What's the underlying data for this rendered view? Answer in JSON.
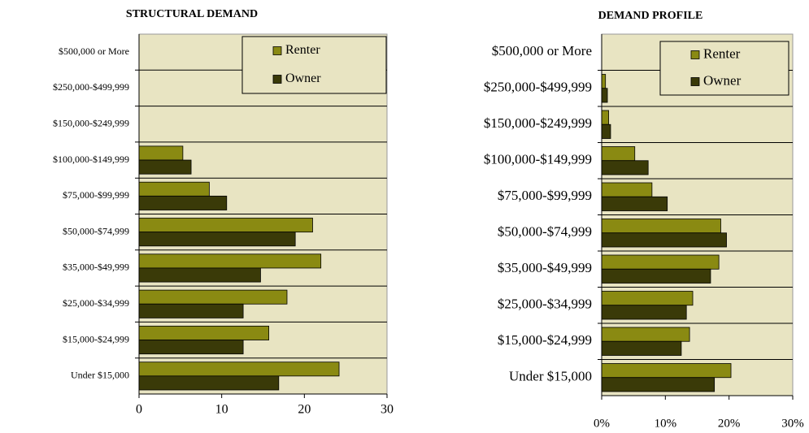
{
  "chart_data": [
    {
      "type": "bar",
      "orientation": "horizontal",
      "title": "STRUCTURAL DEMAND",
      "categories": [
        "$500,000 or More",
        "$250,000-$499,999",
        "$150,000-$249,999",
        "$100,000-$149,999",
        "$75,000-$99,999",
        "$50,000-$74,999",
        "$35,000-$49,999",
        "$25,000-$34,999",
        "$15,000-$24,999",
        "Under $15,000"
      ],
      "series": [
        {
          "name": "Renter",
          "color": "#8a8a12",
          "values": [
            0,
            0,
            0,
            5.3,
            8.5,
            21.0,
            22.0,
            17.9,
            15.7,
            24.2
          ]
        },
        {
          "name": "Owner",
          "color": "#3a3a08",
          "values": [
            0,
            0,
            0,
            6.3,
            10.6,
            18.9,
            14.7,
            12.6,
            12.6,
            16.9
          ]
        }
      ],
      "xlim": [
        0,
        30
      ],
      "xticks": [
        0,
        10,
        20,
        30
      ],
      "legend": "upper right",
      "background": "#e8e4c2"
    },
    {
      "type": "bar",
      "orientation": "horizontal",
      "title": "DEMAND PROFILE",
      "categories": [
        "$500,000 or More",
        "$250,000-$499,999",
        "$150,000-$249,999",
        "$100,000-$149,999",
        "$75,000-$99,999",
        "$50,000-$74,999",
        "$35,000-$49,999",
        "$25,000-$34,999",
        "$15,000-$24,999",
        "Under $15,000"
      ],
      "series": [
        {
          "name": "Renter",
          "color": "#8a8a12",
          "values": [
            0,
            0.6,
            1.1,
            5.2,
            7.9,
            18.7,
            18.4,
            14.3,
            13.8,
            20.3
          ]
        },
        {
          "name": "Owner",
          "color": "#3a3a08",
          "values": [
            0,
            0.9,
            1.4,
            7.3,
            10.3,
            19.6,
            17.1,
            13.3,
            12.5,
            17.7
          ]
        }
      ],
      "xlim": [
        0,
        30
      ],
      "xticks": [
        {
          "value": 0,
          "label": "0%"
        },
        {
          "value": 10,
          "label": "10%"
        },
        {
          "value": 20,
          "label": "20%"
        },
        {
          "value": 30,
          "label": "30%"
        }
      ],
      "legend": "upper right",
      "background": "#e8e4c2"
    }
  ]
}
